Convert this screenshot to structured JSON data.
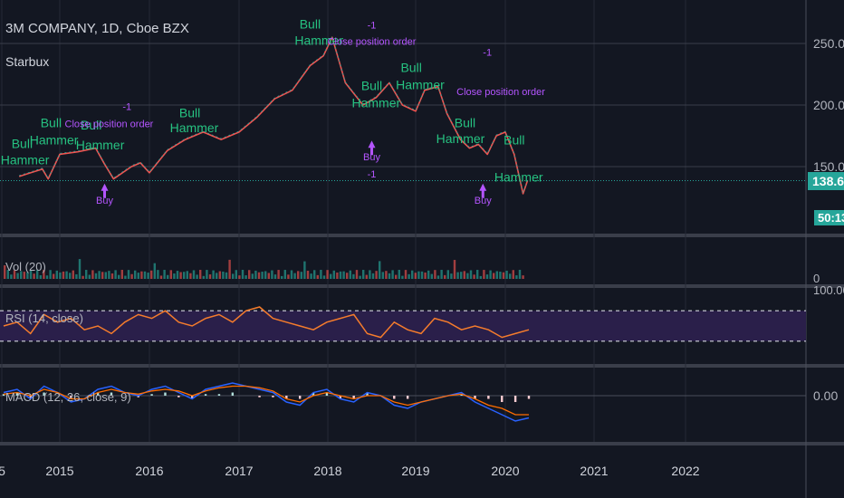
{
  "header": {
    "title": "3M COMPANY, 1D, Cboe BZX",
    "indicator": "Starbux"
  },
  "panes": {
    "volume_label": "Vol (20)",
    "rsi_label": "RSI (14, close)",
    "macd_label": "MACD (12, 26, close, 9)"
  },
  "badges": {
    "price": "138.61",
    "timer": "50:13"
  },
  "colors": {
    "background": "#131722",
    "price_line": "#26a69a",
    "bull": "#26c281",
    "signal": "#b455ff",
    "rsi": "#f57c2c",
    "macd": "#2962ff",
    "macd_signal": "#ff6d00"
  },
  "chart_data": {
    "type": "line",
    "x_ticks": [
      "5",
      "2015",
      "2016",
      "2017",
      "2018",
      "2019",
      "2020",
      "2021",
      "2022"
    ],
    "price_axis": [
      "250.00",
      "200.00",
      "150.00"
    ],
    "rsi_axis": [
      "100.00"
    ],
    "volume_axis": [
      "0"
    ],
    "macd_axis": [
      "0.00"
    ],
    "last_price": 138.61,
    "price_series": {
      "x": [
        2014.3,
        2014.5,
        2014.7,
        2014.8,
        2015.0,
        2015.2,
        2015.4,
        2015.5,
        2015.6,
        2015.8,
        2015.9,
        2016.0,
        2016.2,
        2016.4,
        2016.6,
        2016.8,
        2017.0,
        2017.2,
        2017.4,
        2017.6,
        2017.8,
        2017.95,
        2018.05,
        2018.2,
        2018.4,
        2018.55,
        2018.7,
        2018.85,
        2019.0,
        2019.1,
        2019.25,
        2019.35,
        2019.5,
        2019.6,
        2019.7,
        2019.8,
        2019.9,
        2020.0,
        2020.1,
        2020.2,
        2020.25
      ],
      "y": [
        142,
        145,
        148,
        140,
        160,
        162,
        165,
        152,
        140,
        150,
        153,
        145,
        163,
        172,
        178,
        172,
        178,
        190,
        205,
        212,
        232,
        240,
        255,
        218,
        200,
        206,
        218,
        200,
        195,
        212,
        215,
        193,
        172,
        165,
        168,
        160,
        175,
        178,
        160,
        128,
        138.61
      ]
    },
    "annotations": [
      {
        "text": "Bull",
        "x": 2014.35,
        "y": 165
      },
      {
        "text": "Hammer",
        "x": 2014.4,
        "y": 152
      },
      {
        "text": "Bull",
        "x": 2014.85,
        "y": 182
      },
      {
        "text": "Hammer",
        "x": 2014.9,
        "y": 168
      },
      {
        "text": "Bull",
        "x": 2015.35,
        "y": 180
      },
      {
        "text": "Hammer",
        "x": 2015.45,
        "y": 164
      },
      {
        "text": "Bull",
        "x": 2016.45,
        "y": 190
      },
      {
        "text": "Hammer",
        "x": 2016.5,
        "y": 178
      },
      {
        "text": "Bull",
        "x": 2017.8,
        "y": 262
      },
      {
        "text": "Hammer",
        "x": 2017.9,
        "y": 249
      },
      {
        "text": "Bull",
        "x": 2018.5,
        "y": 212
      },
      {
        "text": "Hammer",
        "x": 2018.55,
        "y": 198
      },
      {
        "text": "Bull",
        "x": 2018.95,
        "y": 227
      },
      {
        "text": "Hammer",
        "x": 2019.05,
        "y": 213
      },
      {
        "text": "Bull",
        "x": 2019.55,
        "y": 182
      },
      {
        "text": "Hammer",
        "x": 2019.5,
        "y": 169
      },
      {
        "text": "Bull",
        "x": 2020.1,
        "y": 168
      },
      {
        "text": "Hammer",
        "x": 2020.15,
        "y": 138
      }
    ],
    "signals": [
      {
        "label": "Close position order",
        "x": 2015.55,
        "y": 182
      },
      {
        "label": "-1",
        "x": 2015.75,
        "y": 196
      },
      {
        "label": "Buy",
        "x": 2015.5,
        "y": 120
      },
      {
        "label": "-1",
        "x": 2018.5,
        "y": 262
      },
      {
        "label": "Close position order",
        "x": 2018.5,
        "y": 249
      },
      {
        "label": "Buy",
        "x": 2018.5,
        "y": 155
      },
      {
        "label": "-1",
        "x": 2018.5,
        "y": 141
      },
      {
        "label": "-1",
        "x": 2019.8,
        "y": 240
      },
      {
        "label": "Close position order",
        "x": 2019.95,
        "y": 208
      },
      {
        "label": "Buy",
        "x": 2019.75,
        "y": 120
      }
    ],
    "rsi_band": [
      30,
      70
    ],
    "rsi_values": [
      50,
      55,
      40,
      65,
      55,
      60,
      45,
      50,
      40,
      55,
      65,
      60,
      70,
      55,
      50,
      60,
      65,
      55,
      70,
      75,
      60,
      55,
      50,
      45,
      55,
      60,
      65,
      40,
      35,
      55,
      45,
      40,
      60,
      55,
      45,
      50,
      45,
      35,
      40,
      45
    ],
    "macd_values": [
      1,
      2,
      -1,
      3,
      1,
      -2,
      -1,
      2,
      3,
      1,
      0,
      2,
      3,
      1,
      -1,
      2,
      3,
      4,
      3,
      2,
      1,
      -2,
      -3,
      1,
      2,
      -1,
      -2,
      1,
      0,
      -3,
      -4,
      -2,
      -1,
      0,
      1,
      -2,
      -4,
      -6,
      -8,
      -7
    ],
    "signal_values": [
      0.5,
      1,
      0,
      2,
      1,
      -1,
      -1,
      1,
      2,
      1,
      0.5,
      1.5,
      2,
      1.5,
      0,
      1.5,
      2.5,
      3,
      3,
      2.5,
      1.5,
      -1,
      -2,
      0,
      1,
      0,
      -1,
      0,
      0,
      -2,
      -3,
      -2,
      -1,
      0,
      0.5,
      -1,
      -3,
      -4,
      -6,
      -6
    ]
  }
}
